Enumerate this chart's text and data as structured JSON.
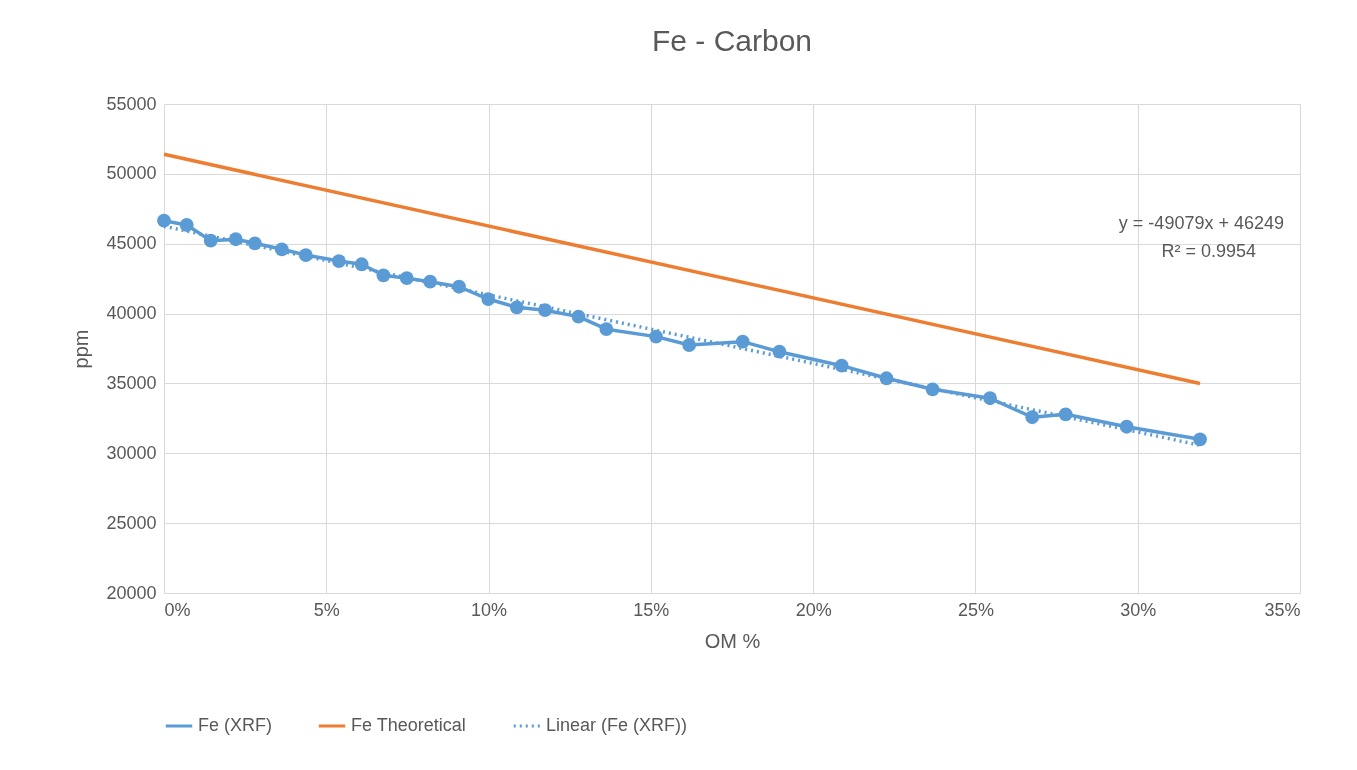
{
  "chart_data": {
    "type": "line",
    "title": "Fe - Carbon",
    "xlabel": "OM %",
    "ylabel": "ppm",
    "xlim": [
      0,
      0.35
    ],
    "xticks": [
      {
        "value": 0,
        "label": "0%"
      },
      {
        "value": 0.05,
        "label": "5%"
      },
      {
        "value": 0.1,
        "label": "10%"
      },
      {
        "value": 0.15,
        "label": "15%"
      },
      {
        "value": 0.2,
        "label": "20%"
      },
      {
        "value": 0.25,
        "label": "25%"
      },
      {
        "value": 0.3,
        "label": "30%"
      },
      {
        "value": 0.35,
        "label": "35%"
      }
    ],
    "ylim": [
      20000,
      55000
    ],
    "yticks": [
      20000,
      25000,
      30000,
      35000,
      40000,
      45000,
      50000,
      55000
    ],
    "grid": true,
    "legend": "bottom",
    "annotations": [
      "y = -49079x + 46249",
      "R² = 0.9954"
    ],
    "series": [
      {
        "name": "Fe (XRF)",
        "color": "#5b9bd5",
        "marker": "circle",
        "line_style": "solid",
        "x": [
          0,
          0.007,
          0.0144,
          0.0221,
          0.028,
          0.0363,
          0.0437,
          0.0539,
          0.0609,
          0.0676,
          0.0748,
          0.082,
          0.0909,
          0.0999,
          0.1087,
          0.1174,
          0.1277,
          0.1363,
          0.1516,
          0.1618,
          0.1783,
          0.1896,
          0.2088,
          0.2226,
          0.2368,
          0.2545,
          0.2675,
          0.2778,
          0.2966,
          0.3192
        ],
        "values": [
          46650,
          46340,
          45220,
          45320,
          45030,
          44600,
          44190,
          43760,
          43530,
          42740,
          42530,
          42280,
          41920,
          41040,
          40450,
          40240,
          39780,
          38880,
          38350,
          37750,
          37990,
          37270,
          36270,
          35370,
          34580,
          33940,
          32580,
          32790,
          31900,
          31000
        ]
      },
      {
        "name": "Fe Theoretical",
        "color": "#ed7d31",
        "marker": "none",
        "line_style": "solid",
        "x": [
          0,
          0.3192
        ],
        "values": [
          51400,
          35000
        ]
      },
      {
        "name": "Linear (Fe (XRF))",
        "color": "#5b9bd5",
        "marker": "none",
        "line_style": "dotted",
        "x": [
          0,
          0.3192
        ],
        "values": [
          46250,
          30580
        ]
      }
    ]
  }
}
